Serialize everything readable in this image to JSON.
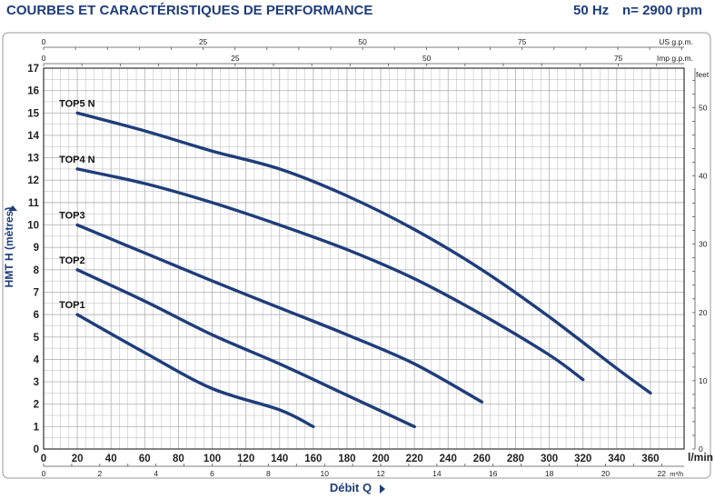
{
  "header": {
    "title": "COURBES ET CARACTÉRISTIQUES DE PERFORMANCE",
    "frequency": "50 Hz",
    "speed": "n= 2900 rpm"
  },
  "chart_data": {
    "type": "line",
    "title": "COURBES ET CARACTÉRISTIQUES DE PERFORMANCE",
    "xlabel": "Débit Q",
    "xunit": "l/min",
    "ylabel": "HMT H (mètres)",
    "xlim": [
      0,
      380
    ],
    "ylim": [
      0,
      17
    ],
    "grid": true,
    "x_ticks": [
      0,
      20,
      40,
      60,
      80,
      100,
      120,
      140,
      160,
      180,
      200,
      220,
      240,
      260,
      280,
      300,
      320,
      340,
      360
    ],
    "y_ticks": [
      0,
      1,
      2,
      3,
      4,
      5,
      6,
      7,
      8,
      9,
      10,
      11,
      12,
      13,
      14,
      15,
      16,
      17
    ],
    "secondary_axes": {
      "us_gpm": {
        "unit": "US g.p.m.",
        "ticks": [
          0,
          25,
          50,
          75
        ]
      },
      "imp_gpm": {
        "unit": "Imp g.p.m.",
        "ticks": [
          0,
          25,
          50,
          75
        ]
      },
      "feet": {
        "unit": "feet",
        "ticks": [
          0,
          10,
          20,
          30,
          40,
          50
        ]
      },
      "m3h": {
        "unit": "m³/h",
        "ticks": [
          0,
          2,
          4,
          6,
          8,
          10,
          12,
          14,
          16,
          18,
          20,
          22
        ]
      }
    },
    "series": [
      {
        "name": "TOP1",
        "x": [
          20,
          60,
          100,
          140,
          160
        ],
        "y": [
          6,
          4.3,
          2.7,
          1.75,
          1
        ]
      },
      {
        "name": "TOP2",
        "x": [
          20,
          60,
          100,
          140,
          180,
          220
        ],
        "y": [
          8,
          6.6,
          5.1,
          3.8,
          2.4,
          1
        ]
      },
      {
        "name": "TOP3",
        "x": [
          20,
          60,
          100,
          140,
          180,
          220,
          260
        ],
        "y": [
          10,
          8.75,
          7.5,
          6.3,
          5.1,
          3.8,
          2.1
        ]
      },
      {
        "name": "TOP4 N",
        "x": [
          20,
          60,
          100,
          140,
          180,
          220,
          260,
          300,
          320
        ],
        "y": [
          12.5,
          11.85,
          11,
          10,
          8.9,
          7.6,
          6,
          4.2,
          3.1
        ]
      },
      {
        "name": "TOP5 N",
        "x": [
          20,
          60,
          100,
          140,
          180,
          220,
          260,
          300,
          340,
          360
        ],
        "y": [
          15,
          14.2,
          13.3,
          12.5,
          11.3,
          9.8,
          8,
          5.9,
          3.6,
          2.5
        ]
      }
    ],
    "line_color": "#1f3d7a",
    "grid_color": "#b8b8b8",
    "text_color": "#1f3d7a"
  }
}
